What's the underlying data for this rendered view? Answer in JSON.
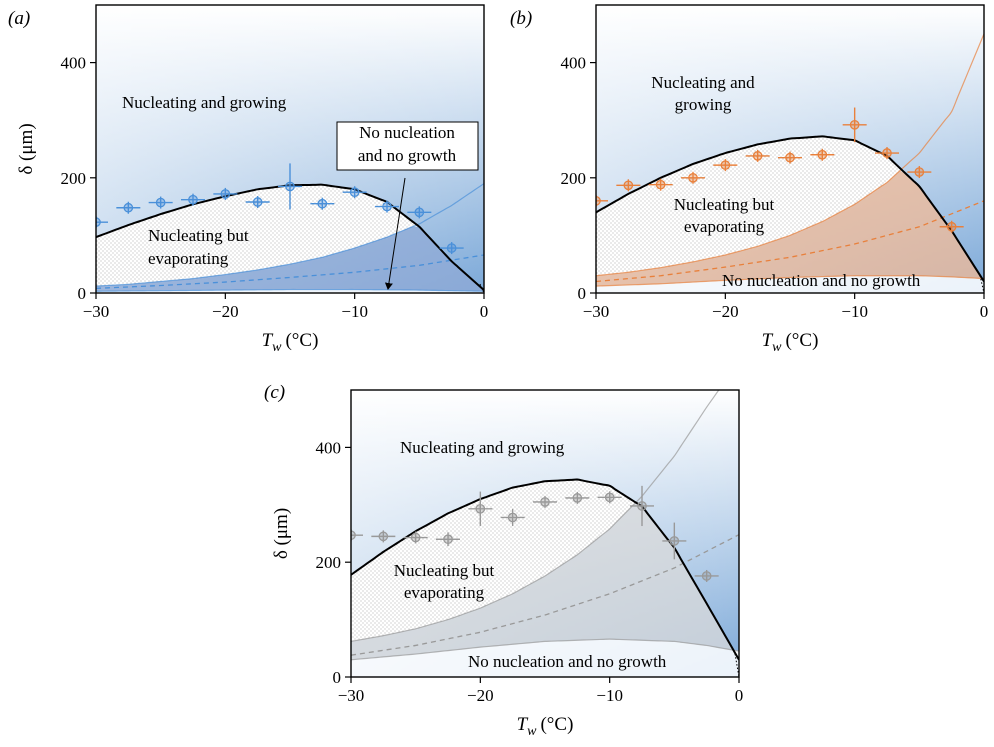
{
  "figure": {
    "colors": {
      "background_top": "#7ba8d8",
      "background_bottom": "#ffffff",
      "curve": "#000000"
    }
  },
  "chart_data": [
    {
      "type": "line",
      "panel": "(a)",
      "xlabel": "T_w (°C)",
      "xlabel_main": "T",
      "xlabel_sub": "w",
      "xlabel_unit": "(°C)",
      "ylabel": "δ (μm)",
      "xlim": [
        -30,
        0
      ],
      "ylim": [
        0,
        500
      ],
      "xticks": [
        -30,
        -20,
        -10,
        0
      ],
      "yticks": [
        0,
        200,
        400
      ],
      "color": "#4a90d9",
      "fill_color": "#8fa9d6",
      "annotations": {
        "top": [
          "Nucleating and growing"
        ],
        "middle": [
          "Nucleating but",
          "evaporating"
        ],
        "bottom": [
          "No nucleation",
          "and no growth"
        ]
      },
      "boundary": {
        "x": [
          -30,
          -27.5,
          -25,
          -22.5,
          -20,
          -17.5,
          -15,
          -12.5,
          -10,
          -7.5,
          -5,
          -2.5,
          0
        ],
        "y": [
          97,
          118,
          137,
          154,
          168,
          180,
          187,
          188,
          180,
          158,
          115,
          55,
          5
        ]
      },
      "upper_bound": {
        "x": [
          -30,
          -27.5,
          -25,
          -22.5,
          -20,
          -17.5,
          -15,
          -12.5,
          -10,
          -7.5,
          -5,
          -2.5,
          0
        ],
        "y": [
          12,
          15,
          20,
          25,
          32,
          40,
          50,
          62,
          78,
          97,
          120,
          152,
          190
        ]
      },
      "lower_bound": {
        "x": [
          -30,
          -25,
          -20,
          -15,
          -10,
          -5,
          -2.5,
          0
        ],
        "y": [
          3,
          4,
          5,
          6,
          6,
          5,
          4,
          3
        ]
      },
      "dashed": {
        "x": [
          -30,
          -25,
          -20,
          -15,
          -10,
          -5,
          0
        ],
        "y": [
          8,
          13,
          19,
          27,
          36,
          48,
          66
        ]
      },
      "points": {
        "x": [
          -30,
          -27.5,
          -25,
          -22.5,
          -20,
          -17.5,
          -15,
          -12.5,
          -10,
          -7.5,
          -5,
          -2.5
        ],
        "y": [
          123,
          148,
          157,
          162,
          172,
          158,
          185,
          155,
          175,
          150,
          140,
          78
        ],
        "yerr": [
          6,
          6,
          6,
          6,
          6,
          6,
          40,
          6,
          6,
          6,
          6,
          10
        ]
      }
    },
    {
      "type": "line",
      "panel": "(b)",
      "xlabel": "T_w (°C)",
      "xlabel_main": "T",
      "xlabel_sub": "w",
      "xlabel_unit": "(°C)",
      "ylabel": "",
      "xlim": [
        -30,
        0
      ],
      "ylim": [
        0,
        500
      ],
      "xticks": [
        -30,
        -20,
        -10,
        0
      ],
      "yticks": [
        0,
        200,
        400
      ],
      "color": "#e8803c",
      "fill_color": "#f2b995",
      "annotations": {
        "top": [
          "Nucleating and",
          "growing"
        ],
        "middle": [
          "Nucleating but",
          "evaporating"
        ],
        "bottom": [
          "No nucleation and no growth"
        ]
      },
      "boundary": {
        "x": [
          -30,
          -27.5,
          -25,
          -22.5,
          -20,
          -17.5,
          -15,
          -12.5,
          -10,
          -7.5,
          -5,
          -2.5,
          0
        ],
        "y": [
          140,
          172,
          200,
          224,
          243,
          258,
          268,
          272,
          265,
          238,
          185,
          108,
          20
        ]
      },
      "upper_bound": {
        "x": [
          -30,
          -27.5,
          -25,
          -22.5,
          -20,
          -17.5,
          -15,
          -12.5,
          -10,
          -7.5,
          -5,
          -2.5,
          0
        ],
        "y": [
          30,
          36,
          44,
          54,
          66,
          81,
          100,
          124,
          154,
          192,
          243,
          315,
          450
        ]
      },
      "lower_bound": {
        "x": [
          -30,
          -25,
          -20,
          -15,
          -10,
          -5,
          -2.5,
          0
        ],
        "y": [
          12,
          16,
          22,
          27,
          30,
          30,
          28,
          25
        ]
      },
      "dashed": {
        "x": [
          -30,
          -25,
          -20,
          -15,
          -10,
          -5,
          0
        ],
        "y": [
          20,
          30,
          45,
          62,
          85,
          115,
          160
        ]
      },
      "points": {
        "x": [
          -30,
          -27.5,
          -25,
          -22.5,
          -20,
          -17.5,
          -15,
          -12.5,
          -10,
          -7.5,
          -5,
          -2.5
        ],
        "y": [
          160,
          187,
          188,
          200,
          222,
          238,
          235,
          240,
          292,
          243,
          210,
          115
        ],
        "yerr": [
          5,
          5,
          5,
          10,
          7,
          5,
          5,
          5,
          30,
          5,
          5,
          5
        ]
      }
    },
    {
      "type": "line",
      "panel": "(c)",
      "xlabel": "T_w (°C)",
      "xlabel_main": "T",
      "xlabel_sub": "w",
      "xlabel_unit": "(°C)",
      "ylabel": "δ (μm)",
      "xlim": [
        -30,
        0
      ],
      "ylim": [
        0,
        500
      ],
      "xticks": [
        -30,
        -20,
        -10,
        0
      ],
      "yticks": [
        0,
        200,
        400
      ],
      "color": "#999999",
      "fill_color": "#d9d9d9",
      "annotations": {
        "top": [
          "Nucleating and growing"
        ],
        "middle": [
          "Nucleating but",
          "evaporating"
        ],
        "bottom": [
          "No nucleation and no growth"
        ]
      },
      "boundary": {
        "x": [
          -30,
          -27.5,
          -25,
          -22.5,
          -20,
          -17.5,
          -15,
          -12.5,
          -10,
          -7.5,
          -5,
          -2.5,
          0
        ],
        "y": [
          178,
          218,
          254,
          285,
          310,
          330,
          341,
          344,
          333,
          297,
          225,
          128,
          30
        ]
      },
      "upper_bound": {
        "x": [
          -30,
          -27.5,
          -25,
          -22.5,
          -20,
          -17.5,
          -15,
          -12.5,
          -10,
          -7.5,
          -5,
          -2.5,
          0
        ],
        "y": [
          62,
          72,
          84,
          100,
          120,
          145,
          176,
          213,
          258,
          315,
          385,
          470,
          550
        ]
      },
      "lower_bound": {
        "x": [
          -30,
          -25,
          -20,
          -15,
          -10,
          -5,
          -2.5,
          0
        ],
        "y": [
          30,
          40,
          52,
          62,
          66,
          62,
          55,
          45
        ]
      },
      "dashed": {
        "x": [
          -30,
          -25,
          -20,
          -15,
          -10,
          -5,
          0
        ],
        "y": [
          38,
          55,
          78,
          108,
          145,
          190,
          248
        ]
      },
      "points": {
        "x": [
          -30,
          -27.5,
          -25,
          -22.5,
          -20,
          -17.5,
          -15,
          -12.5,
          -10,
          -7.5,
          -5,
          -2.5
        ],
        "y": [
          247,
          245,
          243,
          240,
          293,
          278,
          305,
          312,
          313,
          298,
          237,
          176
        ],
        "yerr": [
          5,
          10,
          5,
          12,
          30,
          15,
          6,
          8,
          5,
          35,
          32,
          5
        ]
      }
    }
  ]
}
